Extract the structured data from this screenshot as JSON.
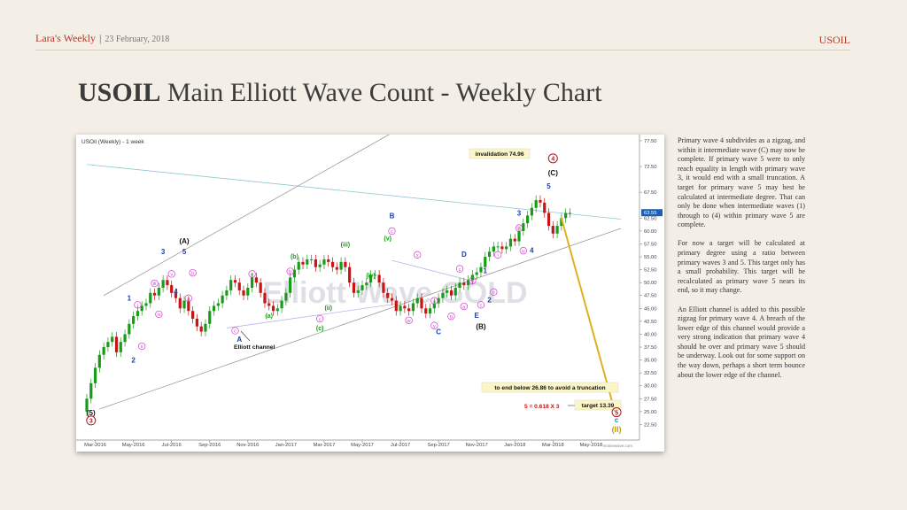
{
  "header": {
    "brand": "Lara's Weekly",
    "separator": "|",
    "date": "23 February, 2018",
    "symbol": "USOIL"
  },
  "title": {
    "bold": "USOIL",
    "rest": " Main Elliott Wave Count - Weekly Chart"
  },
  "commentary": [
    "Primary wave 4 subdivides as a zigzag, and within it intermediate wave (C) may now be complete. If primary wave 5 were to only reach equality in length with primary wave 3, it would end with a small truncation. A target for primary wave 5 may best be calculated at intermediate degree. That can only be done when intermediate waves (1) through to (4) within primary wave 5 are complete.",
    "For now a target will be calculated at primary degree using a ratio between primary waves 3 and 5. This target only has a small probability. This target will be recalculated as primary wave 5 nears its end, so it may change.",
    "An Elliott channel is added to this possible zigzag for primary wave 4. A breach of the lower edge of this channel would provide a very strong indication that primary wave 4 should be over and primary wave 5 should be underway. Look out for some support on the way down, perhaps a short term bounce about the lower edge of the channel."
  ],
  "colors": {
    "up": "#1a9a1a",
    "down": "#c81414",
    "accent": "#b23a2a",
    "projection": "#e0b020",
    "minor_label": "#d43ad4",
    "intermediate_label": "#111111",
    "primary_label": "#b41414",
    "minute_label": "#1a9a1a",
    "minor_blue": "#1840b8"
  },
  "chart_data": {
    "type": "candlestick",
    "symbol_label": "USOil (Weekly) - 1 week",
    "watermark": "Elliott Wave GOLD",
    "source": "motivewave.com",
    "last_price": "63.55",
    "x_ticks": [
      "Mar-2016",
      "May-2016",
      "Jul-2016",
      "Sep-2016",
      "Nov-2016",
      "Jan-2017",
      "Mar-2017",
      "May-2017",
      "Jul-2017",
      "Sep-2017",
      "Nov-2017",
      "Jan-2018",
      "Mar-2018",
      "May-2018"
    ],
    "y_ticks": [
      "77.50",
      "72.50",
      "67.50",
      "62.50",
      "60.00",
      "57.50",
      "55.00",
      "52.50",
      "50.00",
      "47.50",
      "45.00",
      "42.50",
      "40.00",
      "37.50",
      "35.00",
      "32.50",
      "30.00",
      "27.50",
      "25.00",
      "22.50"
    ],
    "ylim": [
      20,
      78
    ],
    "weeks": 115,
    "closes": [
      27.5,
      30.5,
      33.5,
      36,
      37.5,
      38.5,
      39.5,
      36.5,
      38.5,
      40,
      42,
      43.5,
      44.5,
      45.5,
      46,
      48,
      47.5,
      49,
      50.5,
      49.5,
      48,
      47,
      45,
      46.5,
      44.5,
      43,
      41.5,
      40.5,
      42,
      44.5,
      45.5,
      46,
      47.5,
      48.5,
      50.5,
      50,
      48.5,
      47.5,
      49,
      51,
      50,
      48,
      46,
      45.5,
      44.5,
      45,
      46.5,
      48,
      51,
      52.5,
      54,
      53.5,
      54.5,
      54.5,
      53,
      53.5,
      54.5,
      54,
      53,
      52.5,
      54,
      53,
      50,
      48,
      48.5,
      49.5,
      50,
      51.5,
      51.5,
      50,
      48,
      47,
      46.5,
      44.5,
      45.5,
      45,
      44.5,
      46,
      47,
      45,
      44,
      45,
      46,
      47,
      48,
      48.5,
      47.5,
      49,
      50,
      49.5,
      50.5,
      51.5,
      52,
      53,
      55,
      56,
      57,
      57,
      56.5,
      57,
      58.5,
      58,
      60,
      61.5,
      63,
      64.5,
      66,
      65.5,
      63.5,
      61,
      59.5,
      61,
      62.5,
      63.5,
      63.5
    ],
    "annotations": {
      "invalidation": "invalidation 74.96",
      "truncation": "to end below 26.86 to avoid a truncation",
      "ratio": "5 = 0.618 X 3",
      "target": "target 13.39",
      "channel": "Elliott channel"
    },
    "wave_labels": [
      {
        "text": "(5)",
        "week": 1,
        "price": 24.3,
        "group": "intermediate"
      },
      {
        "text": "3",
        "week": 1,
        "price": 22.8,
        "group": "primary_circled"
      },
      {
        "text": "1",
        "week": 10,
        "price": 46.5,
        "group": "minor_blue"
      },
      {
        "text": "2",
        "week": 11,
        "price": 34.5,
        "group": "minor_blue"
      },
      {
        "text": "3",
        "week": 18,
        "price": 55.5,
        "group": "minor_blue"
      },
      {
        "text": "4",
        "week": 21,
        "price": 47.8,
        "group": "minor_blue"
      },
      {
        "text": "5",
        "week": 23,
        "price": 55.5,
        "group": "minor_blue"
      },
      {
        "text": "(A)",
        "week": 23,
        "price": 57.6,
        "group": "intermediate"
      },
      {
        "text": "A",
        "week": 36,
        "price": 38.5,
        "group": "minor_blue"
      },
      {
        "text": "(b)",
        "week": 49,
        "price": 54.7,
        "group": "minute"
      },
      {
        "text": "(a)",
        "week": 43,
        "price": 43.2,
        "group": "minute"
      },
      {
        "text": "(c)",
        "week": 55,
        "price": 40.8,
        "group": "minute"
      },
      {
        "text": "(ii)",
        "week": 57,
        "price": 44.7,
        "group": "minute"
      },
      {
        "text": "(iii)",
        "week": 61,
        "price": 57.0,
        "group": "minute"
      },
      {
        "text": "(iv)",
        "week": 67,
        "price": 51.0,
        "group": "minute"
      },
      {
        "text": "(v)",
        "week": 71,
        "price": 58.2,
        "group": "minute"
      },
      {
        "text": "B",
        "week": 72,
        "price": 62.5,
        "group": "minor_blue"
      },
      {
        "text": "C",
        "week": 83,
        "price": 40.0,
        "group": "minor_blue"
      },
      {
        "text": "D",
        "week": 89,
        "price": 55.0,
        "group": "minor_blue"
      },
      {
        "text": "E",
        "week": 92,
        "price": 43.2,
        "group": "minor_blue"
      },
      {
        "text": "(B)",
        "week": 93,
        "price": 41.0,
        "group": "intermediate"
      },
      {
        "text": "1",
        "week": 94,
        "price": 51.8,
        "group": "minor_blue"
      },
      {
        "text": "2",
        "week": 95,
        "price": 46.2,
        "group": "minor_blue"
      },
      {
        "text": "3",
        "week": 102,
        "price": 63.0,
        "group": "minor_blue"
      },
      {
        "text": "4",
        "week": 105,
        "price": 55.8,
        "group": "minor_blue"
      },
      {
        "text": "5",
        "week": 109,
        "price": 68.2,
        "group": "minor_blue"
      },
      {
        "text": "(C)",
        "week": 110,
        "price": 70.8,
        "group": "intermediate"
      },
      {
        "text": "4",
        "week": 110,
        "price": 73.6,
        "group": "primary_circled"
      },
      {
        "text": "5",
        "week": 125,
        "price": 24.4,
        "group": "primary_circled"
      },
      {
        "text": "c",
        "week": 125,
        "price": 22.9,
        "group": "teal"
      },
      {
        "text": "(II)",
        "week": 125,
        "price": 21.0,
        "group": "cycle"
      }
    ],
    "minor_labels": [
      {
        "text": "i",
        "week": 12,
        "price": 45.3
      },
      {
        "text": "ii",
        "week": 13,
        "price": 37.3
      },
      {
        "text": "iii",
        "week": 16,
        "price": 49.5
      },
      {
        "text": "iv",
        "week": 17,
        "price": 43.5
      },
      {
        "text": "v",
        "week": 20,
        "price": 51.3
      },
      {
        "text": "a",
        "week": 24,
        "price": 46.6
      },
      {
        "text": "b",
        "week": 25,
        "price": 51.5
      },
      {
        "text": "c",
        "week": 35,
        "price": 40.3
      },
      {
        "text": "a",
        "week": 39,
        "price": 51.3
      },
      {
        "text": "b",
        "week": 48,
        "price": 51.8
      },
      {
        "text": "c",
        "week": 55,
        "price": 42.6
      },
      {
        "text": "c",
        "week": 72,
        "price": 59.6
      },
      {
        "text": "x",
        "week": 78,
        "price": 55.0
      },
      {
        "text": "w",
        "week": 76,
        "price": 42.3
      },
      {
        "text": "a",
        "week": 82,
        "price": 46.1
      },
      {
        "text": "y",
        "week": 82,
        "price": 41.3
      },
      {
        "text": "b",
        "week": 86,
        "price": 43.1
      },
      {
        "text": "c",
        "week": 88,
        "price": 52.3
      },
      {
        "text": "b",
        "week": 91,
        "price": 50.0
      },
      {
        "text": "a",
        "week": 89,
        "price": 45.0
      },
      {
        "text": "c",
        "week": 93,
        "price": 45.3
      },
      {
        "text": "i",
        "week": 97,
        "price": 55.0
      },
      {
        "text": "ii",
        "week": 96,
        "price": 47.8
      },
      {
        "text": "iii",
        "week": 102,
        "price": 60.2
      },
      {
        "text": "iv",
        "week": 103,
        "price": 55.8
      }
    ]
  }
}
